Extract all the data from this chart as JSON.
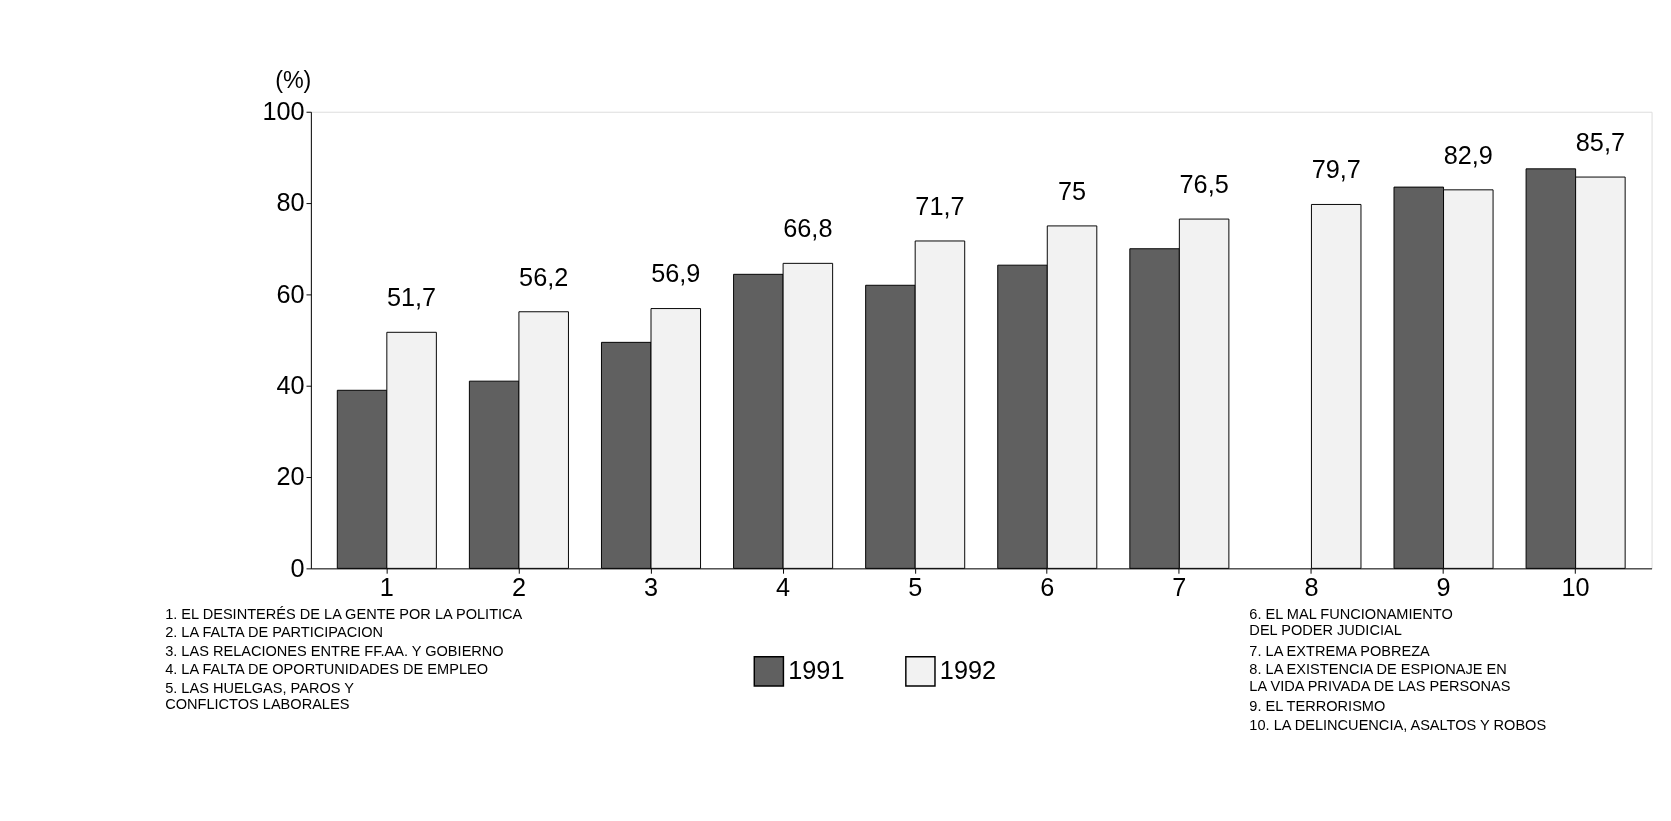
{
  "chart_data": {
    "type": "bar",
    "ylabel": "(%)",
    "categories": [
      "1",
      "2",
      "3",
      "4",
      "5",
      "6",
      "7",
      "8",
      "9",
      "10"
    ],
    "series": [
      {
        "name": "1991",
        "color": "#606060",
        "values": [
          39,
          41,
          49.5,
          64.4,
          62,
          66.4,
          70,
          null,
          83.5,
          87.5
        ]
      },
      {
        "name": "1992",
        "color": "#f2f2f2",
        "values": [
          51.7,
          56.2,
          56.9,
          66.8,
          71.7,
          75,
          76.5,
          79.7,
          82.9,
          85.7
        ],
        "value_labels": [
          "51,7",
          "56,2",
          "56,9",
          "66,8",
          "71,7",
          "75",
          "76,5",
          "79,7",
          "82,9",
          "85,7"
        ]
      }
    ],
    "ylim": [
      0,
      100
    ],
    "yticks": [
      0,
      20,
      40,
      60,
      80,
      100
    ],
    "grid": false,
    "legend": "bottom",
    "annotations": [
      "1. EL DESINTERÉS DE LA GENTE POR LA POLITICA",
      "2. LA FALTA DE PARTICIPACION",
      "3. LAS RELACIONES ENTRE FF.AA. Y GOBIERNO",
      "4. LA FALTA DE OPORTUNIDADES DE EMPLEO",
      "5. LAS HUELGAS, PAROS Y\nCONFLICTOS LABORALES",
      "6. EL MAL FUNCIONAMIENTO\nDEL PODER JUDICIAL",
      "7. LA EXTREMA POBREZA",
      "8. LA EXISTENCIA DE ESPIONAJE EN\nLA VIDA PRIVADA DE LAS PERSONAS",
      "9. EL TERRORISMO",
      "10. LA DELINCUENCIA, ASALTOS Y ROBOS"
    ]
  }
}
